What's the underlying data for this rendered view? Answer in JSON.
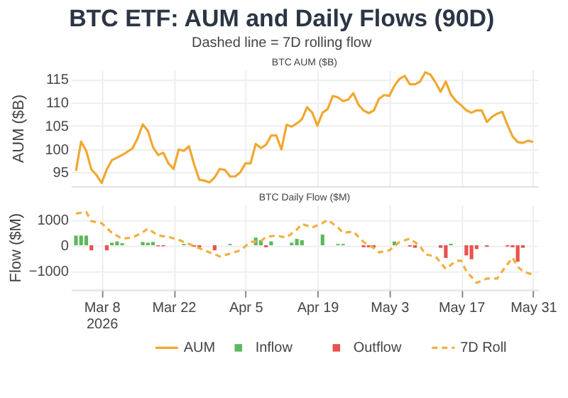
{
  "chart_data": [
    {
      "type": "line",
      "title": "BTC ETF: AUM and Daily Flows (90D)",
      "subtitle": "Dashed line = 7D rolling flow",
      "annotations": [
        "BTC AUM ($B)"
      ],
      "ylabel": "AUM ($B)",
      "xlim": [
        "2026-03-02",
        "2026-06-01"
      ],
      "ylim": [
        92,
        117
      ],
      "yticks": [
        95,
        100,
        105,
        110,
        115
      ],
      "xticks": [
        "2026-03-08",
        "2026-03-22",
        "2026-04-05",
        "2026-04-19",
        "2026-05-03",
        "2026-05-17",
        "2026-05-31"
      ],
      "tick_labels": "y",
      "grid": true,
      "legend": "bottom",
      "series": [
        {
          "name": "AUM",
          "color": "#f0a830",
          "line_style": "solid",
          "x": [
            "2026-03-03",
            "2026-03-04",
            "2026-03-05",
            "2026-03-06",
            "2026-03-07",
            "2026-03-08",
            "2026-03-09",
            "2026-03-10",
            "2026-03-12",
            "2026-03-14",
            "2026-03-15",
            "2026-03-16",
            "2026-03-17",
            "2026-03-18",
            "2026-03-19",
            "2026-03-20",
            "2026-03-21",
            "2026-03-22",
            "2026-03-23",
            "2026-03-24",
            "2026-03-25",
            "2026-03-26",
            "2026-03-27",
            "2026-03-28",
            "2026-03-29",
            "2026-03-30",
            "2026-03-31",
            "2026-04-01",
            "2026-04-02",
            "2026-04-03",
            "2026-04-04",
            "2026-04-05",
            "2026-04-06",
            "2026-04-07",
            "2026-04-08",
            "2026-04-09",
            "2026-04-10",
            "2026-04-11",
            "2026-04-12",
            "2026-04-13",
            "2026-04-14",
            "2026-04-15",
            "2026-04-16",
            "2026-04-17",
            "2026-04-18",
            "2026-04-19",
            "2026-04-20",
            "2026-04-21",
            "2026-04-22",
            "2026-04-23",
            "2026-04-24",
            "2026-04-25",
            "2026-04-26",
            "2026-04-27",
            "2026-04-28",
            "2026-04-29",
            "2026-04-30",
            "2026-05-01",
            "2026-05-02",
            "2026-05-03",
            "2026-05-04",
            "2026-05-05",
            "2026-05-06",
            "2026-05-07",
            "2026-05-08",
            "2026-05-09",
            "2026-05-10",
            "2026-05-11",
            "2026-05-12",
            "2026-05-13",
            "2026-05-14",
            "2026-05-15",
            "2026-05-16",
            "2026-05-17",
            "2026-05-18",
            "2026-05-19",
            "2026-05-20",
            "2026-05-21",
            "2026-05-22",
            "2026-05-23",
            "2026-05-24",
            "2026-05-25",
            "2026-05-26",
            "2026-05-27",
            "2026-05-28",
            "2026-05-29",
            "2026-05-30",
            "2026-05-31"
          ],
          "values": [
            95.3,
            101.6,
            99.6,
            95.6,
            94.4,
            92.7,
            95.6,
            97.6,
            98.7,
            100.1,
            102.3,
            105.3,
            103.9,
            100.4,
            98.7,
            99.2,
            96.9,
            95.7,
            99.9,
            99.6,
            100.6,
            96.7,
            93.4,
            93.2,
            92.8,
            93.9,
            95.7,
            95.5,
            94.1,
            94.1,
            95.0,
            96.9,
            96.9,
            101.1,
            100.2,
            100.9,
            102.9,
            102.9,
            99.9,
            105.2,
            104.8,
            105.5,
            106.4,
            109.0,
            107.8,
            105.0,
            107.8,
            108.6,
            111.4,
            111.1,
            110.3,
            110.6,
            112.0,
            109.5,
            108.3,
            107.7,
            108.3,
            110.8,
            111.6,
            111.4,
            113.6,
            115.1,
            115.7,
            113.9,
            113.9,
            114.5,
            116.5,
            116.0,
            114.3,
            112.3,
            114.5,
            111.7,
            110.3,
            109.4,
            108.3,
            107.8,
            108.3,
            108.3,
            105.8,
            106.9,
            107.6,
            108.0,
            105.2,
            102.7,
            101.5,
            101.3,
            101.8,
            101.5
          ]
        }
      ]
    },
    {
      "type": "bar",
      "title": "BTC Daily Flow ($M)",
      "ylabel": "Flow ($M)",
      "xlim": [
        "2026-03-02",
        "2026-06-01"
      ],
      "ylim": [
        -1750,
        1600
      ],
      "yticks": [
        -1000,
        0,
        1000
      ],
      "xticks": [
        {
          "value": "2026-03-08",
          "label": "Mar 8\n2026"
        },
        {
          "value": "2026-03-22",
          "label": "Mar 22"
        },
        {
          "value": "2026-04-05",
          "label": "Apr 5"
        },
        {
          "value": "2026-04-19",
          "label": "Apr 19"
        },
        {
          "value": "2026-05-03",
          "label": "May 3"
        },
        {
          "value": "2026-05-17",
          "label": "May 17"
        },
        {
          "value": "2026-05-31",
          "label": "May 31"
        }
      ],
      "grid": true,
      "legend": "bottom",
      "series": [
        {
          "name": "Inflow",
          "color": "#5cb85c",
          "x": [
            "2026-03-03",
            "2026-03-04",
            "2026-03-05",
            "2026-03-10",
            "2026-03-11",
            "2026-03-12",
            "2026-03-16",
            "2026-03-17",
            "2026-03-18",
            "2026-03-24",
            "2026-04-02",
            "2026-04-07",
            "2026-04-08",
            "2026-04-10",
            "2026-04-14",
            "2026-04-15",
            "2026-04-16",
            "2026-04-20",
            "2026-04-23",
            "2026-04-24",
            "2026-05-04",
            "2026-05-15"
          ],
          "values": [
            380,
            380,
            380,
            100,
            150,
            80,
            130,
            100,
            130,
            50,
            50,
            300,
            200,
            150,
            100,
            250,
            200,
            420,
            50,
            50,
            150,
            60
          ]
        },
        {
          "name": "Outflow",
          "color": "#e8534f",
          "x": [
            "2026-03-06",
            "2026-03-09",
            "2026-03-19",
            "2026-03-20",
            "2026-03-26",
            "2026-03-27",
            "2026-03-30",
            "2026-04-09",
            "2026-04-28",
            "2026-04-29",
            "2026-04-30",
            "2026-05-07",
            "2026-05-08",
            "2026-05-13",
            "2026-05-14",
            "2026-05-18",
            "2026-05-19",
            "2026-05-20",
            "2026-05-22",
            "2026-05-26",
            "2026-05-27",
            "2026-05-28",
            "2026-05-29"
          ],
          "values": [
            -200,
            -200,
            -40,
            -40,
            -60,
            -80,
            -200,
            -80,
            -80,
            -80,
            -80,
            -50,
            -100,
            -100,
            -500,
            -400,
            -550,
            -150,
            -60,
            -50,
            -80,
            -650,
            -100
          ]
        },
        {
          "name": "7D Roll",
          "type": "line",
          "color": "#f0b040",
          "line_style": "dashed",
          "x": [
            "2026-03-03",
            "2026-03-05",
            "2026-03-06",
            "2026-03-08",
            "2026-03-10",
            "2026-03-12",
            "2026-03-14",
            "2026-03-16",
            "2026-03-17",
            "2026-03-19",
            "2026-03-21",
            "2026-03-23",
            "2026-03-25",
            "2026-03-28",
            "2026-03-31",
            "2026-04-02",
            "2026-04-04",
            "2026-04-06",
            "2026-04-08",
            "2026-04-09",
            "2026-04-11",
            "2026-04-13",
            "2026-04-15",
            "2026-04-16",
            "2026-04-18",
            "2026-04-20",
            "2026-04-21",
            "2026-04-23",
            "2026-04-24",
            "2026-04-26",
            "2026-04-28",
            "2026-04-30",
            "2026-05-01",
            "2026-05-03",
            "2026-05-05",
            "2026-05-07",
            "2026-05-09",
            "2026-05-10",
            "2026-05-12",
            "2026-05-14",
            "2026-05-16",
            "2026-05-17",
            "2026-05-18",
            "2026-05-20",
            "2026-05-22",
            "2026-05-24",
            "2026-05-25",
            "2026-05-27",
            "2026-05-28",
            "2026-05-29",
            "2026-05-30",
            "2026-05-31"
          ],
          "values": [
            1250,
            1310,
            950,
            870,
            490,
            260,
            300,
            510,
            660,
            380,
            330,
            210,
            50,
            -200,
            -440,
            -330,
            -200,
            130,
            160,
            330,
            380,
            300,
            620,
            840,
            700,
            870,
            1000,
            700,
            490,
            540,
            130,
            -110,
            -280,
            -200,
            130,
            260,
            -30,
            -360,
            -440,
            -930,
            -610,
            -610,
            -1020,
            -1480,
            -1310,
            -1310,
            -1020,
            -490,
            -850,
            -1020,
            -1100,
            -1150
          ]
        }
      ]
    }
  ]
}
